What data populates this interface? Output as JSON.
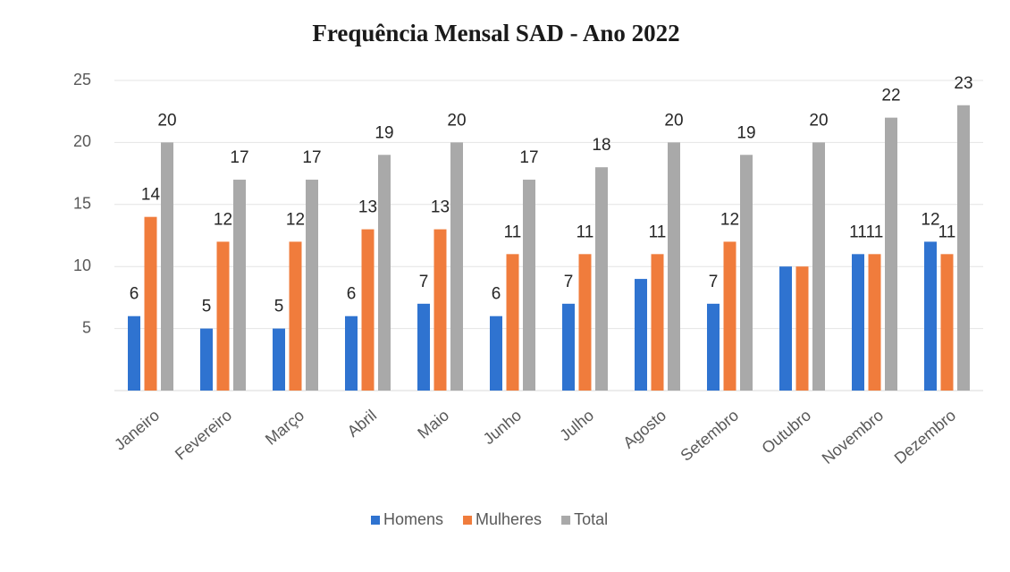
{
  "chart_data": {
    "type": "bar",
    "title": "Frequência Mensal SAD - Ano 2022",
    "categories": [
      "Janeiro",
      "Fevereiro",
      "Março",
      "Abril",
      "Maio",
      "Junho",
      "Julho",
      "Agosto",
      "Setembro",
      "Outubro",
      "Novembro",
      "Dezembro"
    ],
    "series": [
      {
        "name": "Homens",
        "color": "#2f73d0",
        "values": [
          6,
          5,
          5,
          6,
          7,
          6,
          7,
          9,
          7,
          10,
          11,
          12
        ],
        "value_labels": [
          6,
          5,
          5,
          6,
          7,
          6,
          7,
          null,
          7,
          null,
          11,
          12
        ]
      },
      {
        "name": "Mulheres",
        "color": "#f07c3c",
        "values": [
          14,
          12,
          12,
          13,
          13,
          11,
          11,
          11,
          12,
          10,
          11,
          11
        ],
        "value_labels": [
          14,
          12,
          12,
          13,
          13,
          11,
          11,
          11,
          12,
          null,
          11,
          11
        ]
      },
      {
        "name": "Total",
        "color": "#a9a9a9",
        "values": [
          20,
          17,
          17,
          19,
          20,
          17,
          18,
          20,
          19,
          20,
          22,
          23
        ],
        "value_labels": [
          20,
          17,
          17,
          19,
          20,
          17,
          18,
          20,
          19,
          20,
          22,
          23
        ]
      }
    ],
    "ylim": [
      0,
      25
    ],
    "yticks": [
      5,
      10,
      15,
      20,
      25
    ],
    "grid": true,
    "legend": "bottom"
  }
}
